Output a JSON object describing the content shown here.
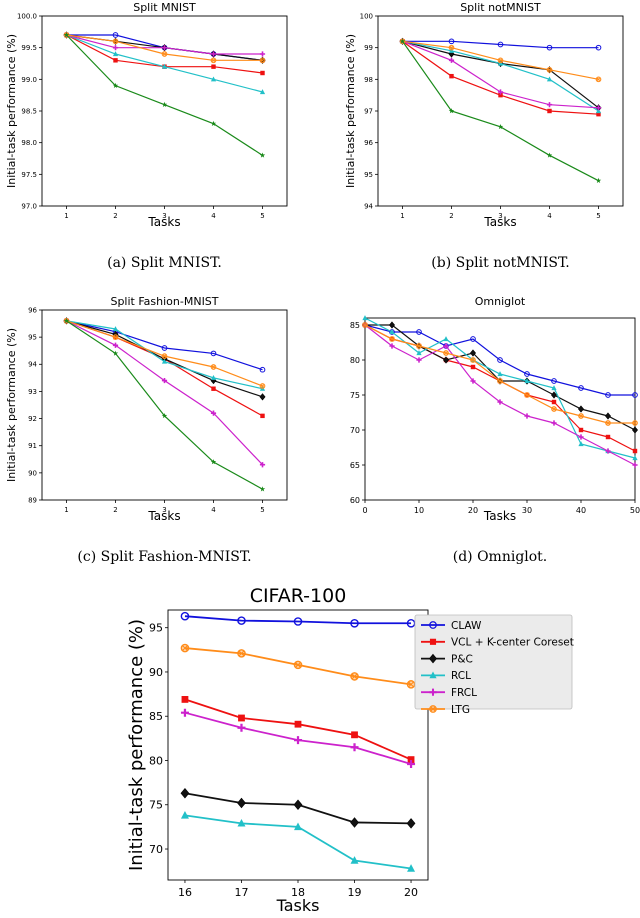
{
  "legend_items": [
    {
      "name": "CLAW",
      "color": "#1111dd",
      "marker": "circle"
    },
    {
      "name": "VCL + K-center Coreset",
      "color": "#ee1111",
      "marker": "square"
    },
    {
      "name": "P&C",
      "color": "#111111",
      "marker": "diamond"
    },
    {
      "name": "RCL",
      "color": "#22c0c8",
      "marker": "triangle"
    },
    {
      "name": "FRCL",
      "color": "#cc22cc",
      "marker": "plus"
    },
    {
      "name": "LTG",
      "color": "#ff8c1a",
      "marker": "xcircle"
    },
    {
      "name": "",
      "color": "#1a8a1a",
      "marker": "star"
    }
  ],
  "chart_data": [
    {
      "id": "a",
      "type": "line",
      "title": "Split MNIST",
      "xlabel": "Tasks",
      "ylabel": "Initial-task performance (%)",
      "caption": "(a) Split MNIST.",
      "x": [
        1,
        2,
        3,
        4,
        5
      ],
      "xlim": [
        0.5,
        5.5
      ],
      "ylim": [
        97.0,
        100.0
      ],
      "xticks": [
        "1",
        "2",
        "3",
        "4",
        "5"
      ],
      "yticks": [
        97.0,
        97.5,
        98.0,
        98.5,
        99.0,
        99.5,
        100.0
      ],
      "ytick_labels": [
        "97.0",
        "97.5",
        "98.0",
        "98.5",
        "99.0",
        "99.5",
        "100.0"
      ],
      "series": [
        {
          "name": "CLAW",
          "values": [
            99.7,
            99.7,
            99.5,
            99.4,
            99.3
          ]
        },
        {
          "name": "VCL + K-center Coreset",
          "values": [
            99.7,
            99.3,
            99.2,
            99.2,
            99.1
          ]
        },
        {
          "name": "P&C",
          "values": [
            99.7,
            99.6,
            99.5,
            99.4,
            99.3
          ]
        },
        {
          "name": "RCL",
          "values": [
            99.7,
            99.4,
            99.2,
            99.0,
            98.8
          ]
        },
        {
          "name": "FRCL",
          "values": [
            99.7,
            99.5,
            99.5,
            99.4,
            99.4
          ]
        },
        {
          "name": "LTG",
          "values": [
            99.7,
            99.6,
            99.4,
            99.3,
            99.3
          ]
        },
        {
          "name": "",
          "values": [
            99.7,
            98.9,
            98.6,
            98.3,
            97.8
          ]
        }
      ]
    },
    {
      "id": "b",
      "type": "line",
      "title": "Split notMNIST",
      "xlabel": "Tasks",
      "ylabel": "Initial-task performance (%)",
      "caption": "(b) Split notMNIST.",
      "x": [
        1,
        2,
        3,
        4,
        5
      ],
      "xlim": [
        0.5,
        5.5
      ],
      "ylim": [
        94,
        100
      ],
      "xticks": [
        "1",
        "2",
        "3",
        "4",
        "5"
      ],
      "yticks": [
        94,
        95,
        96,
        97,
        98,
        99,
        100
      ],
      "ytick_labels": [
        "94",
        "95",
        "96",
        "97",
        "98",
        "99",
        "100"
      ],
      "series": [
        {
          "name": "CLAW",
          "values": [
            99.2,
            99.2,
            99.1,
            99.0,
            99.0
          ]
        },
        {
          "name": "VCL + K-center Coreset",
          "values": [
            99.2,
            98.1,
            97.5,
            97.0,
            96.9
          ]
        },
        {
          "name": "P&C",
          "values": [
            99.2,
            98.8,
            98.5,
            98.3,
            97.1
          ]
        },
        {
          "name": "RCL",
          "values": [
            99.2,
            98.9,
            98.5,
            98.0,
            97.0
          ]
        },
        {
          "name": "FRCL",
          "values": [
            99.2,
            98.6,
            97.6,
            97.2,
            97.1
          ]
        },
        {
          "name": "LTG",
          "values": [
            99.2,
            99.0,
            98.6,
            98.3,
            98.0
          ]
        },
        {
          "name": "",
          "values": [
            99.2,
            97.0,
            96.5,
            95.6,
            94.8
          ]
        }
      ]
    },
    {
      "id": "c",
      "type": "line",
      "title": "Split Fashion-MNIST",
      "xlabel": "Tasks",
      "ylabel": "Initial-task performance (%)",
      "caption": "(c) Split Fashion-MNIST.",
      "x": [
        1,
        2,
        3,
        4,
        5
      ],
      "xlim": [
        0.5,
        5.5
      ],
      "ylim": [
        89,
        96
      ],
      "xticks": [
        "1",
        "2",
        "3",
        "4",
        "5"
      ],
      "yticks": [
        89,
        90,
        91,
        92,
        93,
        94,
        95,
        96
      ],
      "ytick_labels": [
        "89",
        "90",
        "91",
        "92",
        "93",
        "94",
        "95",
        "96"
      ],
      "series": [
        {
          "name": "CLAW",
          "values": [
            95.6,
            95.2,
            94.6,
            94.4,
            93.8
          ]
        },
        {
          "name": "VCL + K-center Coreset",
          "values": [
            95.6,
            95.0,
            94.2,
            93.1,
            92.1
          ]
        },
        {
          "name": "P&C",
          "values": [
            95.6,
            95.1,
            94.2,
            93.4,
            92.8
          ]
        },
        {
          "name": "RCL",
          "values": [
            95.6,
            95.3,
            94.1,
            93.5,
            93.1
          ]
        },
        {
          "name": "FRCL",
          "values": [
            95.6,
            94.7,
            93.4,
            92.2,
            90.3
          ]
        },
        {
          "name": "LTG",
          "values": [
            95.6,
            95.0,
            94.3,
            93.9,
            93.2
          ]
        },
        {
          "name": "",
          "values": [
            95.6,
            94.4,
            92.1,
            90.4,
            89.4
          ]
        }
      ]
    },
    {
      "id": "d",
      "type": "line",
      "title": "Omniglot",
      "xlabel": "Tasks",
      "ylabel": "",
      "caption": "(d) Omniglot.",
      "x": [
        0,
        5,
        10,
        15,
        20,
        25,
        30,
        35,
        40,
        45,
        50
      ],
      "xlim": [
        0,
        50
      ],
      "ylim": [
        60,
        86
      ],
      "xticks": [
        "0",
        "10",
        "20",
        "30",
        "40",
        "50"
      ],
      "xtick_values": [
        0,
        10,
        20,
        30,
        40,
        50
      ],
      "yticks": [
        60,
        65,
        70,
        75,
        80,
        85
      ],
      "ytick_labels": [
        "60",
        "65",
        "70",
        "75",
        "80",
        "85"
      ],
      "series": [
        {
          "name": "CLAW",
          "values": [
            85,
            84,
            84,
            82,
            83,
            80,
            78,
            77,
            76,
            75,
            75
          ]
        },
        {
          "name": "VCL + K-center Coreset",
          "values": [
            85,
            83,
            82,
            80,
            79,
            77,
            75,
            74,
            70,
            69,
            67
          ]
        },
        {
          "name": "P&C",
          "values": [
            85,
            85,
            82,
            80,
            81,
            77,
            77,
            75,
            73,
            72,
            70
          ]
        },
        {
          "name": "RCL",
          "values": [
            86,
            84,
            81,
            83,
            80,
            78,
            77,
            76,
            68,
            67,
            66
          ]
        },
        {
          "name": "FRCL",
          "values": [
            85,
            82,
            80,
            82,
            77,
            74,
            72,
            71,
            69,
            67,
            65
          ]
        },
        {
          "name": "LTG",
          "values": [
            85,
            83,
            82,
            81,
            80,
            77,
            75,
            73,
            72,
            71,
            71
          ]
        }
      ]
    },
    {
      "id": "e",
      "type": "line",
      "title": "CIFAR-100",
      "xlabel": "Tasks",
      "ylabel": "Initial-task performance (%)",
      "caption": "",
      "x": [
        16,
        17,
        18,
        19,
        20
      ],
      "xlim": [
        15.7,
        20.3
      ],
      "ylim": [
        66.5,
        97
      ],
      "xticks": [
        "16",
        "17",
        "18",
        "19",
        "20"
      ],
      "yticks": [
        70,
        75,
        80,
        85,
        90,
        95
      ],
      "ytick_labels": [
        "70",
        "75",
        "80",
        "85",
        "90",
        "95"
      ],
      "series": [
        {
          "name": "CLAW",
          "values": [
            96.3,
            95.8,
            95.7,
            95.5,
            95.5
          ]
        },
        {
          "name": "VCL + K-center Coreset",
          "values": [
            86.9,
            84.8,
            84.1,
            82.9,
            80.1
          ]
        },
        {
          "name": "P&C",
          "values": [
            76.3,
            75.2,
            75.0,
            73.0,
            72.9
          ]
        },
        {
          "name": "RCL",
          "values": [
            73.8,
            72.9,
            72.5,
            68.7,
            67.8
          ]
        },
        {
          "name": "FRCL",
          "values": [
            85.4,
            83.7,
            82.3,
            81.5,
            79.6
          ]
        },
        {
          "name": "LTG",
          "values": [
            92.7,
            92.1,
            90.8,
            89.5,
            88.6
          ]
        }
      ]
    }
  ]
}
